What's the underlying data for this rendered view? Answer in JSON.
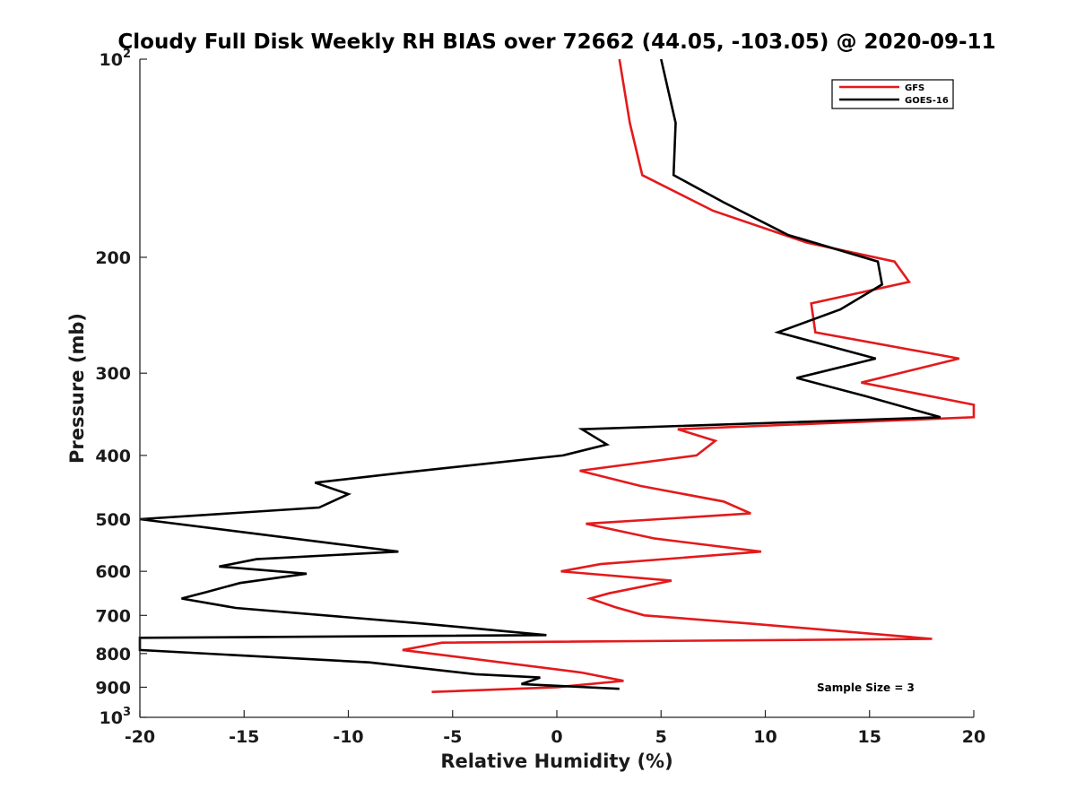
{
  "chart_data": {
    "type": "line",
    "title": "Cloudy Full Disk Weekly RH BIAS over 72662 (44.05, -103.05) @ 2020-09-11",
    "xlabel": "Relative Humidity (%)",
    "ylabel": "Pressure (mb)",
    "xlim": [
      -20,
      20
    ],
    "ylim": [
      100,
      1000
    ],
    "y_scale": "log",
    "y_reversed": true,
    "x_ticks": [
      "-20",
      "-15",
      "-10",
      "-5",
      "0",
      "5",
      "10",
      "15",
      "20"
    ],
    "y_ticks": [
      {
        "base": "10",
        "exp": "2"
      },
      {
        "base": "200",
        "exp": ""
      },
      {
        "base": "300",
        "exp": ""
      },
      {
        "base": "400",
        "exp": ""
      },
      {
        "base": "500",
        "exp": ""
      },
      {
        "base": "600",
        "exp": ""
      },
      {
        "base": "700",
        "exp": ""
      },
      {
        "base": "800",
        "exp": ""
      },
      {
        "base": "900",
        "exp": ""
      },
      {
        "base": "10",
        "exp": "3"
      }
    ],
    "legend_position": "top-right",
    "annotation": "Sample Size = 3",
    "series": [
      {
        "name": "GFS",
        "color": "#e31a1c",
        "points": [
          [
            3,
            100
          ],
          [
            3.5,
            125
          ],
          [
            4.1,
            150
          ],
          [
            7.5,
            170
          ],
          [
            12,
            190
          ],
          [
            16.2,
            203
          ],
          [
            16.9,
            218
          ],
          [
            12.2,
            235
          ],
          [
            12.4,
            260
          ],
          [
            19.3,
            285
          ],
          [
            14.6,
            310
          ],
          [
            20,
            335
          ],
          [
            20,
            350
          ],
          [
            5.8,
            365
          ],
          [
            7.6,
            380
          ],
          [
            6.7,
            400
          ],
          [
            1.1,
            422
          ],
          [
            4,
            445
          ],
          [
            8,
            470
          ],
          [
            9.3,
            490
          ],
          [
            1.4,
            508
          ],
          [
            4.7,
            535
          ],
          [
            9.8,
            560
          ],
          [
            2.1,
            585
          ],
          [
            0.2,
            600
          ],
          [
            5.5,
            620
          ],
          [
            2.5,
            648
          ],
          [
            1.6,
            660
          ],
          [
            2.8,
            680
          ],
          [
            4.2,
            700
          ],
          [
            9.2,
            720
          ],
          [
            18,
            760
          ],
          [
            -5.5,
            770
          ],
          [
            -7.4,
            790
          ],
          [
            1.2,
            855
          ],
          [
            3.2,
            880
          ],
          [
            0,
            900
          ],
          [
            -6,
            915
          ]
        ]
      },
      {
        "name": "GOES-16",
        "color": "#000000",
        "points": [
          [
            5,
            100
          ],
          [
            5.7,
            125
          ],
          [
            5.6,
            150
          ],
          [
            8,
            165
          ],
          [
            11.1,
            185
          ],
          [
            15.4,
            203
          ],
          [
            15.6,
            220
          ],
          [
            13.6,
            240
          ],
          [
            10.6,
            260
          ],
          [
            15.3,
            285
          ],
          [
            11.5,
            305
          ],
          [
            14.8,
            325
          ],
          [
            18.4,
            350
          ],
          [
            1.2,
            365
          ],
          [
            2.4,
            385
          ],
          [
            0.3,
            400
          ],
          [
            -7.4,
            425
          ],
          [
            -11.6,
            440
          ],
          [
            -10,
            458
          ],
          [
            -11.4,
            480
          ],
          [
            -20,
            500
          ],
          [
            -7.6,
            560
          ],
          [
            -14.4,
            575
          ],
          [
            -16.2,
            590
          ],
          [
            -12,
            605
          ],
          [
            -15.2,
            625
          ],
          [
            -16.8,
            645
          ],
          [
            -18,
            660
          ],
          [
            -15.4,
            682
          ],
          [
            -6.5,
            720
          ],
          [
            -0.5,
            750
          ],
          [
            -20,
            757
          ],
          [
            -20,
            790
          ],
          [
            -9,
            825
          ],
          [
            -3.9,
            860
          ],
          [
            -0.8,
            870
          ],
          [
            -1.7,
            890
          ],
          [
            3,
            905
          ]
        ]
      }
    ]
  }
}
